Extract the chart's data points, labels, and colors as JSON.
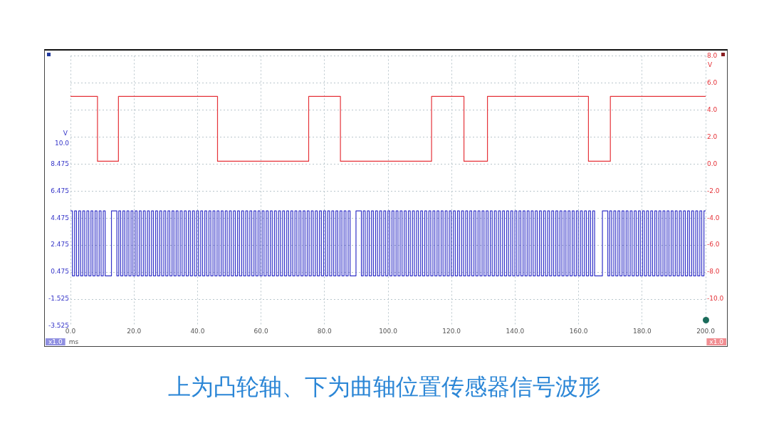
{
  "chart_data": {
    "type": "step",
    "title": "上为凸轮轴、下为曲轴位置传感器信号波形",
    "xlabel": "ms",
    "ylabel": "V",
    "y2label": "V",
    "xlim": [
      0,
      200
    ],
    "xticks": [
      {
        "value": 0,
        "label": "0.0"
      },
      {
        "value": 20,
        "label": "20.0"
      },
      {
        "value": 40,
        "label": "40.0"
      },
      {
        "value": 60,
        "label": "60.0"
      },
      {
        "value": 80,
        "label": "80.0"
      },
      {
        "value": 100,
        "label": "100.0"
      },
      {
        "value": 120,
        "label": "120.0"
      },
      {
        "value": 140,
        "label": "140.0"
      },
      {
        "value": 160,
        "label": "160.0"
      },
      {
        "value": 180,
        "label": "180.0"
      },
      {
        "value": 200,
        "label": "200.0"
      }
    ],
    "ylim": [
      -3.525,
      16.475
    ],
    "yticks": [
      {
        "value": 10,
        "label": "10.0"
      },
      8.475,
      6.475,
      4.475,
      2.475,
      0.475,
      -1.525,
      -3.525
    ],
    "y2lim": [
      -12,
      8
    ],
    "y2ticks": [
      {
        "value": 8,
        "label": "8.0"
      },
      {
        "value": 6,
        "label": "6.0"
      },
      {
        "value": 4,
        "label": "4.0"
      },
      {
        "value": 2,
        "label": "2.0"
      },
      {
        "value": 0,
        "label": "0.0"
      },
      {
        "value": -2,
        "label": "-2.0"
      },
      {
        "value": -4,
        "label": "-4.0"
      },
      {
        "value": -6,
        "label": "-6.0"
      },
      {
        "value": -8,
        "label": "-8.0"
      },
      {
        "value": -10,
        "label": "-10.0"
      }
    ],
    "grid": true,
    "annotations": [
      "x1.0",
      "x1.0"
    ],
    "series": [
      {
        "color": "#e53238",
        "axis": "y2",
        "x": [
          0,
          8.5,
          15.1,
          46.3,
          75.0,
          85.0,
          113.7,
          123.9,
          131.3,
          163.1,
          170.0,
          200
        ],
        "values": [
          5,
          0.2,
          5,
          0.2,
          5,
          0.2,
          5,
          0.2,
          5,
          0.2,
          5,
          5
        ]
      },
      {
        "color": "#3434c8",
        "axis": "y",
        "x": [
          0,
          0.6,
          1.29,
          1.89,
          2.58,
          3.18,
          3.87,
          4.47,
          5.16,
          5.76,
          6.45,
          7.05,
          7.74,
          8.34,
          9.03,
          9.63,
          10.32,
          10.92,
          12.9,
          14.6,
          15.2,
          15.8,
          16.49,
          17.09,
          17.78,
          18.38,
          19.07,
          19.67,
          20.36,
          20.96,
          21.65,
          22.25,
          22.94,
          23.54,
          24.23,
          24.83,
          25.52,
          26.12,
          26.81,
          27.41,
          28.1,
          28.7,
          29.39,
          29.99,
          30.68,
          31.28,
          31.97,
          32.57,
          33.26,
          33.86,
          34.55,
          35.15,
          35.84,
          36.44,
          37.13,
          37.73,
          38.42,
          39.02,
          39.71,
          40.31,
          41,
          41.6,
          42.29,
          42.89,
          43.58,
          44.18,
          44.87,
          45.47,
          46.16,
          46.76,
          47.45,
          48.05,
          48.74,
          49.34,
          50.03,
          50.63,
          51.32,
          51.92,
          52.61,
          53.21,
          53.9,
          54.5,
          55.19,
          55.79,
          56.48,
          57.08,
          57.77,
          58.37,
          59.06,
          59.66,
          60.35,
          60.95,
          61.64,
          62.24,
          62.93,
          63.53,
          64.22,
          64.82,
          65.51,
          66.11,
          66.8,
          67.4,
          68.09,
          68.69,
          69.38,
          69.98,
          70.67,
          71.27,
          71.96,
          72.56,
          73.25,
          73.85,
          74.54,
          75.14,
          75.83,
          76.43,
          77.12,
          77.72,
          78.41,
          79.01,
          79.7,
          80.3,
          80.99,
          81.59,
          82.28,
          82.88,
          83.57,
          84.17,
          84.86,
          85.46,
          86.15,
          86.75,
          87.44,
          88.04,
          89.9,
          91.6,
          92.2,
          92.8,
          93.49,
          94.09,
          94.78,
          95.38,
          96.07,
          96.67,
          97.36,
          97.96,
          98.65,
          99.25,
          99.94,
          100.54,
          101.23,
          101.83,
          102.52,
          103.12,
          103.81,
          104.41,
          105.1,
          105.7,
          106.39,
          106.99,
          107.68,
          108.28,
          108.97,
          109.57,
          110.26,
          110.86,
          111.55,
          112.15,
          112.84,
          113.44,
          114.13,
          114.73,
          115.42,
          116.02,
          116.71,
          117.31,
          118,
          118.6,
          119.29,
          119.89,
          120.58,
          121.18,
          121.87,
          122.47,
          123.16,
          123.76,
          124.45,
          125.05,
          125.74,
          126.34,
          127.03,
          127.63,
          128.32,
          128.92,
          129.61,
          130.21,
          130.9,
          131.5,
          132.19,
          132.79,
          133.48,
          134.08,
          134.77,
          135.37,
          136.06,
          136.66,
          137.35,
          137.95,
          138.64,
          139.24,
          139.93,
          140.53,
          141.22,
          141.82,
          142.51,
          143.11,
          143.8,
          144.4,
          145.09,
          145.69,
          146.38,
          146.98,
          147.67,
          148.27,
          148.96,
          149.56,
          150.25,
          150.85,
          151.54,
          152.14,
          152.83,
          153.43,
          154.12,
          154.72,
          155.41,
          156.01,
          156.7,
          157.3,
          157.99,
          158.59,
          159.28,
          159.88,
          160.57,
          161.17,
          161.86,
          162.46,
          163.15,
          163.75,
          164.44,
          165.04,
          167.5,
          169.2,
          169.8,
          170.4,
          171.09,
          171.69,
          172.38,
          172.98,
          173.67,
          174.27,
          174.96,
          175.56,
          176.25,
          176.85,
          177.54,
          178.14,
          178.83,
          179.43,
          180.12,
          180.72,
          181.41,
          182.01,
          182.7,
          183.3,
          183.99,
          184.59,
          185.28,
          185.88,
          186.57,
          187.17,
          187.86,
          188.46,
          189.15,
          189.75,
          190.44,
          191.04,
          191.73,
          192.33,
          193.02,
          193.62,
          194.31,
          194.91,
          195.6,
          196.2,
          196.89,
          197.49,
          198.18,
          198.78,
          199.47,
          200
        ],
        "values": [
          5,
          0.2,
          5,
          0.2,
          5,
          0.2,
          5,
          0.2,
          5,
          0.2,
          5,
          0.2,
          5,
          0.2,
          5,
          0.2,
          5,
          0.2,
          5,
          0.2,
          5,
          0.2,
          5,
          0.2,
          5,
          0.2,
          5,
          0.2,
          5,
          0.2,
          5,
          0.2,
          5,
          0.2,
          5,
          0.2,
          5,
          0.2,
          5,
          0.2,
          5,
          0.2,
          5,
          0.2,
          5,
          0.2,
          5,
          0.2,
          5,
          0.2,
          5,
          0.2,
          5,
          0.2,
          5,
          0.2,
          5,
          0.2,
          5,
          0.2,
          5,
          0.2,
          5,
          0.2,
          5,
          0.2,
          5,
          0.2,
          5,
          0.2,
          5,
          0.2,
          5,
          0.2,
          5,
          0.2,
          5,
          0.2,
          5,
          0.2,
          5,
          0.2,
          5,
          0.2,
          5,
          0.2,
          5,
          0.2,
          5,
          0.2,
          5,
          0.2,
          5,
          0.2,
          5,
          0.2,
          5,
          0.2,
          5,
          0.2,
          5,
          0.2,
          5,
          0.2,
          5,
          0.2,
          5,
          0.2,
          5,
          0.2,
          5,
          0.2,
          5,
          0.2,
          5,
          0.2,
          5,
          0.2,
          5,
          0.2,
          5,
          0.2,
          5,
          0.2,
          5,
          0.2,
          5,
          0.2,
          5,
          0.2,
          5,
          0.2,
          5,
          0.2,
          5,
          0.2,
          5,
          0.2,
          5,
          0.2,
          5,
          0.2,
          5,
          0.2,
          5,
          0.2,
          5,
          0.2,
          5,
          0.2,
          5,
          0.2,
          5,
          0.2,
          5,
          0.2,
          5,
          0.2,
          5,
          0.2,
          5,
          0.2,
          5,
          0.2,
          5,
          0.2,
          5,
          0.2,
          5,
          0.2,
          5,
          0.2,
          5,
          0.2,
          5,
          0.2,
          5,
          0.2,
          5,
          0.2,
          5,
          0.2,
          5,
          0.2,
          5,
          0.2,
          5,
          0.2,
          5,
          0.2,
          5,
          0.2,
          5,
          0.2,
          5,
          0.2,
          5,
          0.2,
          5,
          0.2,
          5,
          0.2,
          5,
          0.2,
          5,
          0.2,
          5,
          0.2,
          5,
          0.2,
          5,
          0.2,
          5,
          0.2,
          5,
          0.2,
          5,
          0.2,
          5,
          0.2,
          5,
          0.2,
          5,
          0.2,
          5,
          0.2,
          5,
          0.2,
          5,
          0.2,
          5,
          0.2,
          5,
          0.2,
          5,
          0.2,
          5,
          0.2,
          5,
          0.2,
          5,
          0.2,
          5,
          0.2,
          5,
          0.2,
          5,
          0.2,
          5,
          0.2,
          5,
          0.2,
          5,
          0.2,
          5,
          0.2,
          5,
          0.2,
          5,
          0.2,
          5,
          0.2,
          5,
          0.2,
          5,
          0.2,
          5,
          0.2,
          5,
          0.2,
          5,
          0.2,
          5,
          0.2,
          5,
          0.2,
          5,
          0.2,
          5,
          0.2,
          5,
          0.2,
          5,
          0.2,
          5,
          0.2,
          5,
          0.2,
          5,
          0.2,
          5,
          0.2,
          5,
          0.2,
          5,
          0.2,
          5,
          0.2,
          5,
          5
        ]
      }
    ]
  }
}
